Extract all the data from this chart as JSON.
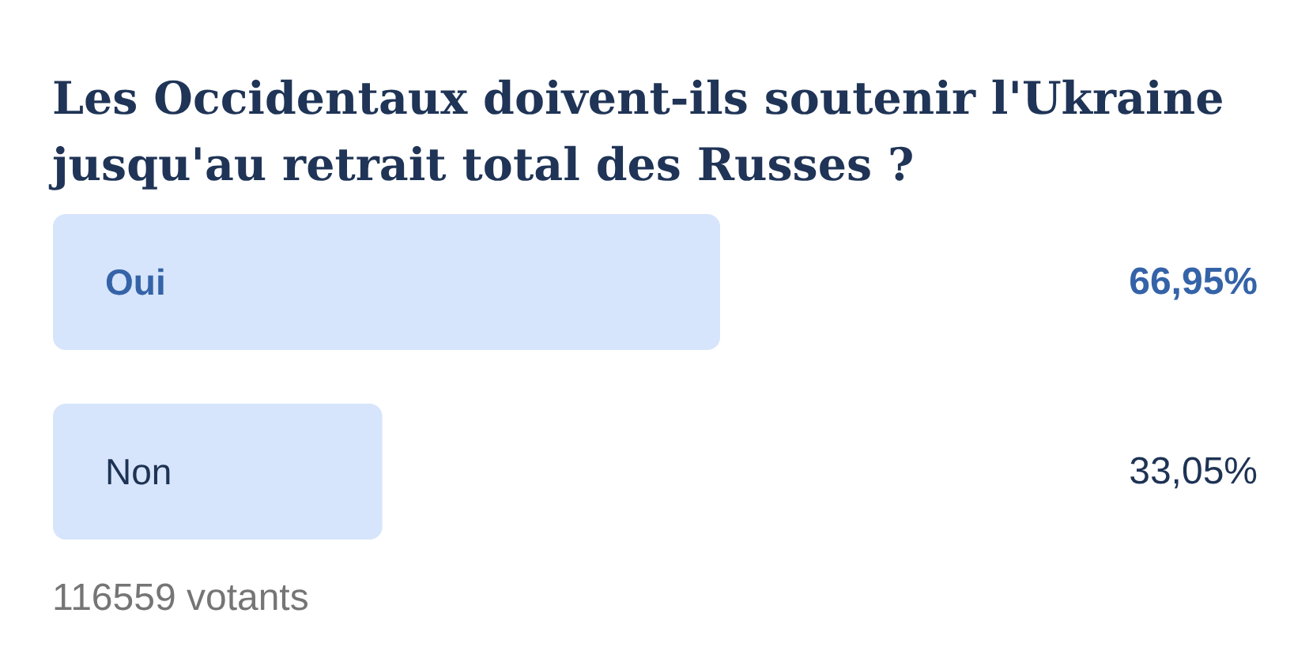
{
  "chart_data": {
    "type": "bar",
    "orientation": "horizontal",
    "title": "Les Occidentaux doivent-ils soutenir l'Ukraine jusqu'au retrait total des Russes ?",
    "categories": [
      "Oui",
      "Non"
    ],
    "values": [
      66.95,
      33.05
    ],
    "colors": [
      "#d6e5fb",
      "#d6e5fb"
    ],
    "value_labels": [
      "66,95%",
      "33,05%"
    ],
    "annotations": [
      "116559 votants"
    ]
  }
}
